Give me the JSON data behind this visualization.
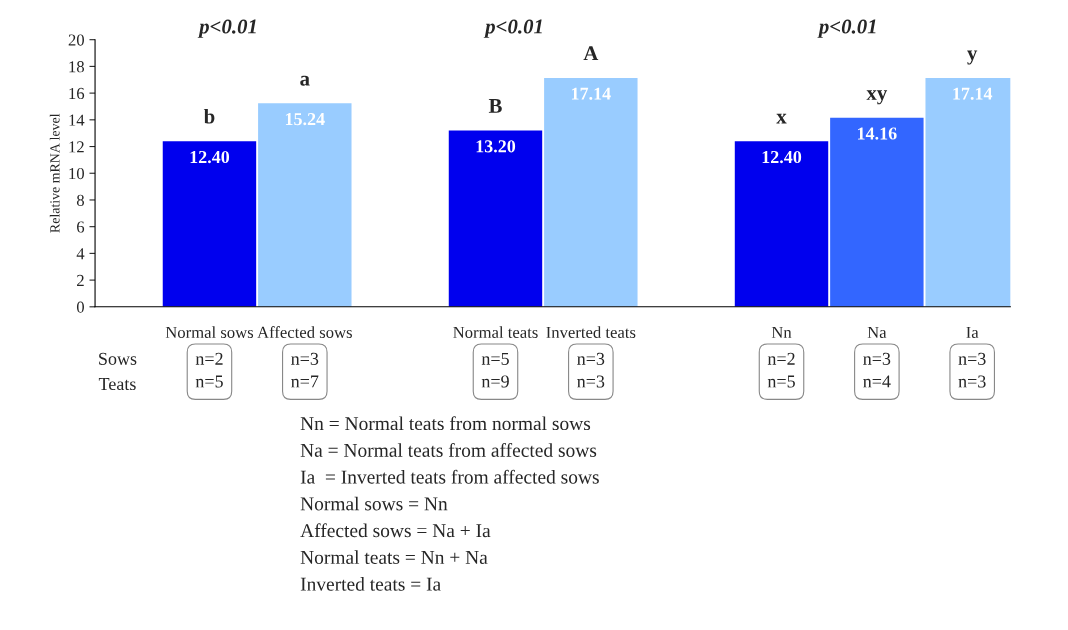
{
  "chart_data": {
    "type": "bar",
    "ylabel": "Relative mRNA level",
    "categories": [
      "Normal sows",
      "Affected sows",
      null,
      "Normal teats",
      "Inverted teats",
      null,
      "Nn",
      "Na",
      "Ia"
    ],
    "values": [
      12.4,
      15.24,
      null,
      13.2,
      17.14,
      null,
      12.4,
      14.16,
      17.14
    ],
    "colors": [
      "#0000ee",
      "#99ccff",
      null,
      "#0000ee",
      "#99ccff",
      null,
      "#0000ee",
      "#3366ff",
      "#99ccff"
    ],
    "value_labels": [
      "12.40",
      "15.24",
      null,
      "13.20",
      "17.14",
      null,
      "12.40",
      "14.16",
      "17.14"
    ],
    "ylim": [
      0,
      20
    ],
    "yticks": [
      0,
      2,
      4,
      6,
      8,
      10,
      12,
      14,
      16,
      18,
      20
    ],
    "grid": false,
    "legend": false,
    "annotations": [
      "p<0.01",
      "p<0.01",
      "p<0.01",
      {
        "text": "b",
        "x": "Normal sows",
        "y": 12.4
      },
      {
        "text": "a",
        "x": "Affected sows",
        "y": 15.24
      },
      {
        "text": "B",
        "x": "Normal teats",
        "y": 13.2
      },
      {
        "text": "A",
        "x": "Inverted teats",
        "y": 17.14
      },
      {
        "text": "x",
        "x": "Nn",
        "y": 12.4
      },
      {
        "text": "xy",
        "x": "Na",
        "y": 14.16
      },
      {
        "text": "y",
        "x": "Ia",
        "y": 17.14
      },
      "n=2\nn=5",
      "n=3\nn=7",
      "n=5\nn=9",
      "n=3\nn=3",
      "n=2\nn=5",
      "n=3\nn=4",
      "n=3\nn=3",
      "Sows",
      "Teats",
      "Nn = Normal teats from normal sows",
      "Na = Normal teats from affected sows",
      "Ia  = Inverted teats from affected sows",
      "Normal sows = Nn",
      "Affected sows = Na + Ia",
      "Normal teats = Nn + Na",
      "Inverted teats = Ia"
    ]
  }
}
